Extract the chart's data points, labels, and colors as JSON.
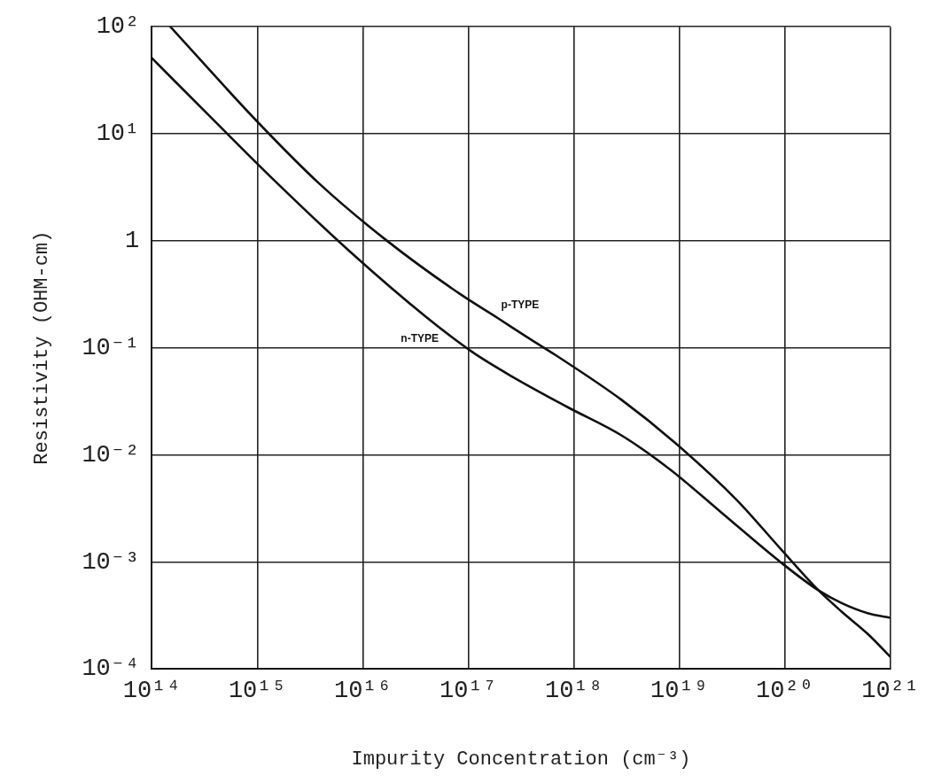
{
  "chart_data": {
    "type": "line",
    "xlabel": "Impurity Concentration (cm⁻³)",
    "ylabel": "Resistivity (OHM-cm)",
    "log": "xy",
    "grid": true,
    "legend": false,
    "marker": "none",
    "line_style": "solid",
    "xlim": [
      100000000000000.0,
      1e+21
    ],
    "ylim": [
      0.0001,
      100
    ],
    "xticks": [
      {
        "value": 100000000000000.0,
        "label": "10¹⁴"
      },
      {
        "value": 1000000000000000.0,
        "label": "10¹⁵"
      },
      {
        "value": 1e+16,
        "label": "10¹⁶"
      },
      {
        "value": 1e+17,
        "label": "10¹⁷"
      },
      {
        "value": 1e+18,
        "label": "10¹⁸"
      },
      {
        "value": 1e+19,
        "label": "10¹⁹"
      },
      {
        "value": 1e+20,
        "label": "10²⁰"
      },
      {
        "value": 1e+21,
        "label": "10²¹"
      }
    ],
    "yticks": [
      {
        "value": 0.0001,
        "label": "10⁻⁴"
      },
      {
        "value": 0.001,
        "label": "10⁻³"
      },
      {
        "value": 0.01,
        "label": "10⁻²"
      },
      {
        "value": 0.1,
        "label": "10⁻¹"
      },
      1,
      {
        "value": 10,
        "label": "10¹"
      },
      {
        "value": 100,
        "label": "10²"
      }
    ],
    "series": [
      {
        "name": "p-TYPE",
        "color": "#111111",
        "x": [
          150000000000000.0,
          1000000000000000.0,
          3900000000000000.0,
          1.7e+16,
          8.3e+16,
          1.9e+17,
          3.9e+17,
          6.8e+17,
          2.8e+18,
          9.1e+18,
          3.5e+19,
          9.3e+19,
          2.1e+20,
          3.5e+20,
          6.2e+20,
          1e+21
        ],
        "values": [
          100,
          13,
          3.4,
          1.0,
          0.32,
          0.19,
          0.12,
          0.085,
          0.033,
          0.013,
          0.0038,
          0.0013,
          0.00054,
          0.00034,
          0.00021,
          0.00013
        ]
      },
      {
        "name": "n-TYPE",
        "color": "#111111",
        "x": [
          100000000000000.0,
          370000000000000.0,
          1400000000000000.0,
          7600000000000000.0,
          4.1e+16,
          1.1e+17,
          2.6e+17,
          8.7e+17,
          2.9e+18,
          8.5e+18,
          2.5e+19,
          9.3e+19,
          2.1e+20,
          3.5e+20,
          6.2e+20,
          1e+21
        ],
        "values": [
          51,
          14,
          3.8,
          0.79,
          0.19,
          0.091,
          0.054,
          0.028,
          0.015,
          0.0071,
          0.0029,
          0.00098,
          0.00054,
          0.00041,
          0.00033,
          0.0003
        ]
      }
    ]
  }
}
